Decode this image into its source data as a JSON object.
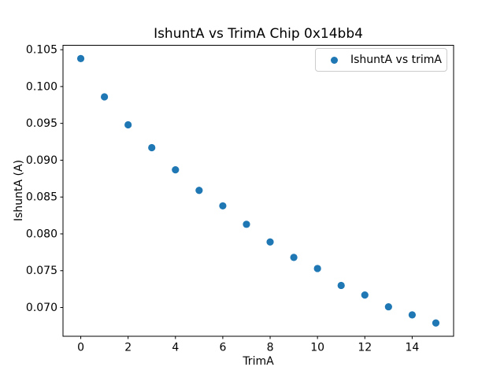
{
  "figure": {
    "background": "#ffffff",
    "frame_color": "#000000"
  },
  "chart_data": {
    "type": "scatter",
    "title": "IshuntA vs TrimA Chip 0x14bb4",
    "xlabel": "TrimA",
    "ylabel": "IshuntA (A)",
    "legend": {
      "label": "IshuntA vs trimA",
      "position": "upper right"
    },
    "marker_color": "#1f77b4",
    "grid": false,
    "x": [
      0,
      1,
      2,
      3,
      4,
      5,
      6,
      7,
      8,
      9,
      10,
      11,
      12,
      13,
      14,
      15
    ],
    "y": [
      0.1038,
      0.0986,
      0.0948,
      0.0917,
      0.0887,
      0.0859,
      0.0838,
      0.0813,
      0.0789,
      0.0768,
      0.0753,
      0.073,
      0.0717,
      0.0701,
      0.069,
      0.0679
    ],
    "xlim": [
      -0.75,
      15.75
    ],
    "ylim": [
      0.0661,
      0.1056
    ],
    "xticks": {
      "values": [
        0,
        2,
        4,
        6,
        8,
        10,
        12,
        14
      ],
      "labels": [
        "0",
        "2",
        "4",
        "6",
        "8",
        "10",
        "12",
        "14"
      ]
    },
    "yticks": {
      "values": [
        0.07,
        0.075,
        0.08,
        0.085,
        0.09,
        0.095,
        0.1,
        0.105
      ],
      "labels": [
        "0.070",
        "0.075",
        "0.080",
        "0.085",
        "0.090",
        "0.095",
        "0.100",
        "0.105"
      ]
    }
  }
}
